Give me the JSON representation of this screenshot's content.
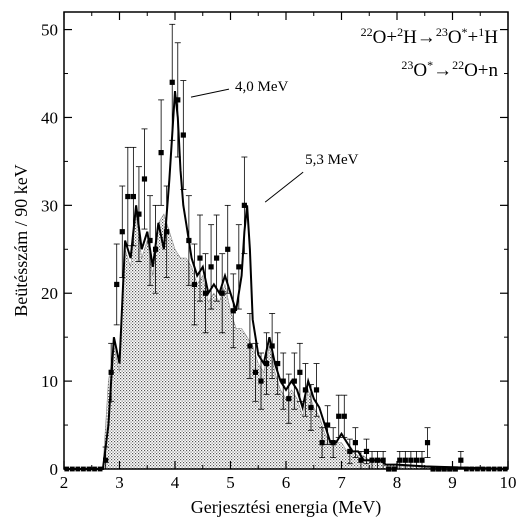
{
  "chart_data": {
    "type": "line",
    "xlabel": "Gerjesztési energia (MeV)",
    "ylabel": "Beütésszám / 90 keV",
    "xlim": [
      2,
      10
    ],
    "ylim": [
      0,
      52
    ],
    "x_ticks": [
      2,
      3,
      4,
      5,
      6,
      7,
      8,
      9,
      10
    ],
    "y_ticks": [
      0,
      10,
      20,
      30,
      40,
      50
    ],
    "reactions": [
      {
        "parts": [
          {
            "sup": "22"
          },
          {
            "t": "O+"
          },
          {
            "sup": "2"
          },
          {
            "t": "H→"
          },
          {
            "sup": "23"
          },
          {
            "t": "O"
          },
          {
            "sup": "*"
          },
          {
            "t": "+"
          },
          {
            "sup": "1"
          },
          {
            "t": "H"
          }
        ]
      },
      {
        "parts": [
          {
            "sup": "23"
          },
          {
            "t": "O"
          },
          {
            "sup": "*"
          },
          {
            "t": "→"
          },
          {
            "sup": "22"
          },
          {
            "t": "O+n"
          }
        ]
      }
    ],
    "annotations": [
      {
        "text": "4,0 MeV",
        "x": 4.0,
        "y": 43
      },
      {
        "text": "5,3 MeV",
        "x": 5.3,
        "y": 29
      }
    ],
    "series": [
      {
        "kind": "points",
        "x": [
          2.75,
          2.85,
          2.95,
          3.05,
          3.15,
          3.25,
          3.35,
          3.45,
          3.55,
          3.65,
          3.75,
          3.85,
          3.95,
          4.05,
          4.15,
          4.25,
          4.35,
          4.45,
          4.55,
          4.65,
          4.75,
          4.85,
          4.95,
          5.05,
          5.15,
          5.25,
          5.35,
          5.45,
          5.55,
          5.65,
          5.75,
          5.85,
          5.95,
          6.05,
          6.15,
          6.25,
          6.35,
          6.45,
          6.55,
          6.65,
          6.75,
          6.85,
          6.95,
          7.05,
          7.15,
          7.25,
          7.35,
          7.45,
          7.55,
          7.65,
          7.75,
          7.85,
          7.95,
          8.05,
          8.15,
          8.25,
          8.35,
          8.45,
          8.55,
          8.65,
          8.75,
          8.85,
          8.95,
          9.05,
          9.15
        ],
        "y": [
          1,
          11,
          21,
          27,
          31,
          31,
          29,
          33,
          26,
          25,
          36,
          27,
          44,
          42,
          38,
          26,
          21,
          24,
          20,
          23,
          24,
          20,
          25,
          18,
          23,
          30,
          14,
          11,
          10,
          12,
          14,
          12,
          10,
          8,
          10,
          11,
          9,
          7,
          9,
          3,
          5,
          3,
          6,
          6,
          2,
          3,
          1,
          2,
          1,
          1,
          1,
          0,
          0,
          1,
          1,
          1,
          1,
          1,
          3,
          0,
          0,
          0,
          0,
          0,
          1
        ],
        "err": [
          1.5,
          3.3,
          4.6,
          5.2,
          5.6,
          5.6,
          5.4,
          5.7,
          5.1,
          5.0,
          6.0,
          5.2,
          6.6,
          6.5,
          6.2,
          5.1,
          4.6,
          4.9,
          4.5,
          4.8,
          4.9,
          4.5,
          5.0,
          4.2,
          4.8,
          5.5,
          3.7,
          3.3,
          3.2,
          3.5,
          3.7,
          3.5,
          3.2,
          2.8,
          3.2,
          3.3,
          3.0,
          2.6,
          3.0,
          1.7,
          2.2,
          1.7,
          2.4,
          2.4,
          1.4,
          1.7,
          1.0,
          1.4,
          1.0,
          1.0,
          1.0,
          0,
          0,
          1.0,
          1.0,
          1.0,
          1.0,
          1.0,
          1.7,
          0,
          0,
          0,
          0,
          0,
          1.0
        ]
      },
      {
        "kind": "fit-line",
        "x": [
          2.0,
          2.7,
          2.8,
          2.9,
          3.0,
          3.1,
          3.2,
          3.3,
          3.4,
          3.5,
          3.6,
          3.7,
          3.8,
          3.85,
          3.9,
          3.95,
          4.0,
          4.05,
          4.1,
          4.15,
          4.2,
          4.3,
          4.4,
          4.5,
          4.6,
          4.7,
          4.8,
          4.9,
          5.0,
          5.1,
          5.2,
          5.25,
          5.3,
          5.35,
          5.4,
          5.5,
          5.6,
          5.7,
          5.8,
          5.9,
          6.0,
          6.1,
          6.2,
          6.3,
          6.4,
          6.5,
          6.6,
          6.7,
          6.8,
          6.9,
          7.0,
          7.1,
          7.2,
          7.3,
          7.4,
          7.5,
          7.6,
          7.7,
          7.8,
          7.9,
          8.0,
          8.5,
          9.0,
          10.0
        ],
        "y": [
          0,
          0,
          5,
          15,
          12,
          26,
          24,
          30,
          25,
          27,
          23,
          28,
          25,
          29,
          33,
          38,
          43,
          40,
          34,
          30,
          28,
          24,
          22,
          23,
          20,
          21,
          20,
          22,
          20,
          18,
          22,
          27,
          30,
          25,
          17,
          13,
          12,
          15,
          12,
          10,
          9,
          10,
          9,
          7,
          10,
          8,
          7,
          5,
          3,
          3,
          4,
          3,
          2,
          2,
          1,
          1,
          1,
          1,
          0.5,
          0.5,
          0.5,
          0.3,
          0.2,
          0
        ]
      },
      {
        "kind": "shaded-histogram",
        "x": [
          2.7,
          2.8,
          2.9,
          3.0,
          3.1,
          3.2,
          3.3,
          3.4,
          3.5,
          3.6,
          3.7,
          3.8,
          3.9,
          4.0,
          4.1,
          4.2,
          4.3,
          4.4,
          4.5,
          4.6,
          4.7,
          4.8,
          4.9,
          5.0,
          5.1,
          5.2,
          5.3,
          5.4,
          5.5,
          5.6,
          5.7,
          5.8,
          5.9,
          6.0,
          6.1,
          6.2,
          6.3,
          6.4,
          6.5,
          6.6,
          6.7,
          6.8,
          6.9,
          7.0,
          7.1,
          7.2,
          7.3,
          7.4,
          7.5,
          7.6,
          7.7,
          7.8,
          7.9,
          8.0,
          8.1,
          8.2,
          8.3,
          8.4,
          8.5,
          8.6,
          8.7,
          8.8,
          8.9,
          9.0
        ],
        "y": [
          0,
          10,
          14,
          11,
          25,
          23,
          29,
          24,
          26,
          22,
          28,
          29,
          27,
          25,
          24,
          24,
          23,
          21,
          22,
          19,
          20,
          19,
          21,
          18,
          16,
          16,
          15,
          14,
          12,
          11,
          14,
          11,
          9,
          8,
          9,
          8,
          6,
          9,
          7,
          6,
          4,
          3,
          3,
          3,
          2,
          2,
          1.5,
          1.5,
          1,
          1,
          1,
          0.5,
          0.5,
          0.5,
          0.3,
          0.3,
          0.3,
          0.2,
          0.2,
          0.1,
          0.1,
          0.1,
          0,
          0
        ]
      }
    ]
  }
}
